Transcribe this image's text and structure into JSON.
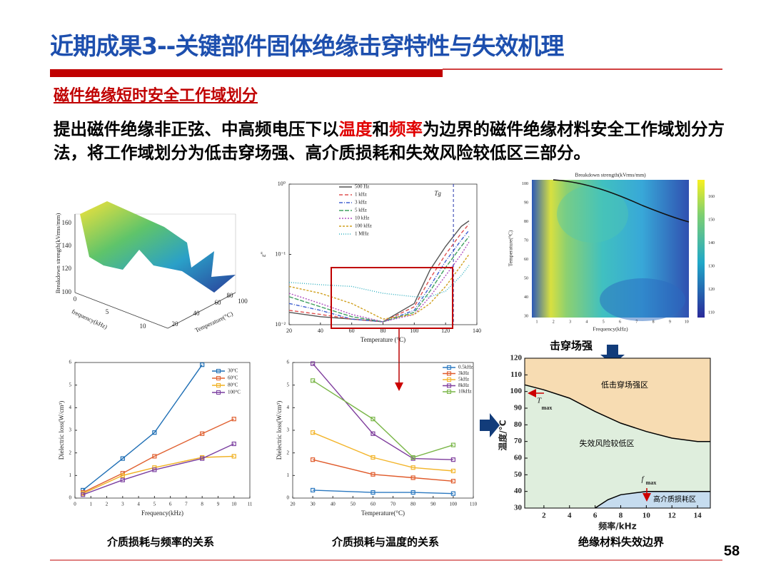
{
  "header": {
    "title": "近期成果3--关键部件固体绝缘击穿特性与失效机理",
    "subtitle": "磁件绝缘短时安全工作域划分",
    "page_number": "58"
  },
  "intro": {
    "parts": [
      "提出磁件绝缘非正弦、中高频电压下以",
      "温度",
      "和",
      "频率",
      "为边界的磁件绝缘材料安全工作域划分方法，将工作域划分为低击穿场强、高介质损耗和失效风险较低区三部分。"
    ]
  },
  "captions": [
    "介质损耗与频率的关系",
    "介质损耗与温度的关系",
    "绝缘材料失效边界"
  ],
  "annotation": "击穿场强",
  "surface3d": {
    "z_label": "Breakdown strength(kVrms/mm)",
    "x_label": "frequency(kHz)",
    "y_label": "Temperature(°C)",
    "z_ticks": [
      100,
      120,
      140,
      160
    ],
    "x_ticks": [
      0,
      5,
      10
    ],
    "y_ticks": [
      20,
      40,
      60,
      80,
      100
    ]
  },
  "eps": {
    "type": "line",
    "x_label": "Temperature (°C)",
    "y_label": "ε''",
    "tg_label": "Tg",
    "tg_value": 125,
    "x": [
      20,
      40,
      60,
      80,
      100,
      110,
      120,
      130,
      135
    ],
    "xlim": [
      20,
      140
    ],
    "xticks": [
      20,
      40,
      60,
      80,
      100,
      120,
      140
    ],
    "ylim": [
      0.01,
      1
    ],
    "log_y": true,
    "yticks": [
      {
        "value": 0.01,
        "label": "10⁻²"
      },
      {
        "value": 0.1,
        "label": "10⁻¹"
      },
      {
        "value": 1,
        "label": "10⁰"
      }
    ],
    "series": [
      {
        "name": "500 Hz",
        "color": "#555555",
        "values": [
          0.015,
          0.013,
          0.012,
          0.011,
          0.02,
          0.06,
          0.13,
          0.25,
          0.3
        ]
      },
      {
        "name": "1 kHz",
        "color": "#e05050",
        "values": [
          0.016,
          0.014,
          0.012,
          0.011,
          0.018,
          0.045,
          0.1,
          0.2,
          0.27
        ]
      },
      {
        "name": "3 kHz",
        "color": "#4060d0",
        "values": [
          0.02,
          0.016,
          0.012,
          0.011,
          0.016,
          0.035,
          0.08,
          0.16,
          0.22
        ]
      },
      {
        "name": "5 kHz",
        "color": "#40a060",
        "values": [
          0.025,
          0.018,
          0.013,
          0.011,
          0.015,
          0.03,
          0.065,
          0.13,
          0.18
        ]
      },
      {
        "name": "10 kHz",
        "color": "#b050c0",
        "values": [
          0.028,
          0.02,
          0.014,
          0.011,
          0.014,
          0.025,
          0.05,
          0.1,
          0.15
        ]
      },
      {
        "name": "100 kHz",
        "color": "#d0a020",
        "values": [
          0.035,
          0.028,
          0.02,
          0.012,
          0.014,
          0.02,
          0.035,
          0.07,
          0.1
        ]
      },
      {
        "name": "1 MHz",
        "color": "#30b0c0",
        "values": [
          0.04,
          0.037,
          0.035,
          0.028,
          0.025,
          0.025,
          0.03,
          0.05,
          0.07
        ]
      }
    ]
  },
  "heatmap": {
    "title": "Breakdown strength(kVrms/mm)",
    "x_label": "Frequency(kHz)",
    "y_label": "Temperature(°C)",
    "xticks": [
      1,
      2,
      3,
      4,
      5,
      6,
      7,
      8,
      9,
      10
    ],
    "yticks": [
      30,
      40,
      50,
      60,
      70,
      80,
      90,
      100
    ],
    "colorbar_ticks": [
      110,
      120,
      130,
      140,
      150,
      160
    ]
  },
  "freq_loss": {
    "type": "line",
    "x_label": "Frequency(kHz)",
    "y_label": "Dielectric loss(W/cm³)",
    "x": [
      0.5,
      3,
      5,
      8,
      10
    ],
    "xlim": [
      0,
      11
    ],
    "xticks": [
      0,
      1,
      2,
      3,
      4,
      5,
      6,
      7,
      8,
      9,
      10,
      11
    ],
    "ylim": [
      0,
      6
    ],
    "yticks": [
      0,
      1,
      2,
      3,
      4,
      5,
      6
    ],
    "series": [
      {
        "name": "30°C",
        "color": "#1f6fb5",
        "values": [
          0.35,
          1.75,
          2.9,
          5.9,
          null
        ]
      },
      {
        "name": "60°C",
        "color": "#e06030",
        "values": [
          0.25,
          1.1,
          1.85,
          2.85,
          3.5
        ]
      },
      {
        "name": "80°C",
        "color": "#f0b020",
        "values": [
          0.2,
          1.0,
          1.35,
          1.8,
          1.85
        ]
      },
      {
        "name": "100°C",
        "color": "#7b3fa0",
        "values": [
          0.15,
          0.8,
          1.25,
          1.75,
          2.4
        ]
      }
    ]
  },
  "temp_loss": {
    "type": "line",
    "x_label": "Temperature(°C)",
    "y_label": "Dielectric loss(W/cm³)",
    "x": [
      30,
      60,
      80,
      100
    ],
    "xlim": [
      20,
      110
    ],
    "xticks": [
      20,
      30,
      40,
      50,
      60,
      70,
      80,
      90,
      100,
      110
    ],
    "ylim": [
      0,
      6
    ],
    "yticks": [
      0,
      1,
      2,
      3,
      4,
      5,
      6
    ],
    "series": [
      {
        "name": "0.5kHz",
        "color": "#2a78c0",
        "values": [
          0.35,
          0.25,
          0.25,
          0.2
        ]
      },
      {
        "name": "3kHz",
        "color": "#e05a2a",
        "values": [
          1.7,
          1.05,
          0.9,
          0.75
        ]
      },
      {
        "name": "5kHz",
        "color": "#f3b52b",
        "values": [
          2.9,
          1.8,
          1.35,
          1.2
        ]
      },
      {
        "name": "8kHz",
        "color": "#7e3c9c",
        "values": [
          5.95,
          2.85,
          1.75,
          1.7
        ]
      },
      {
        "name": "10kHz",
        "color": "#7ab648",
        "values": [
          5.2,
          3.5,
          1.8,
          2.35
        ]
      }
    ]
  },
  "boundary": {
    "x_label": "频率/kHz",
    "y_label": "温度/°C",
    "xlim": [
      0.5,
      15
    ],
    "xticks": [
      2,
      4,
      6,
      8,
      10,
      12,
      14
    ],
    "ylim": [
      30,
      120
    ],
    "yticks": [
      30,
      40,
      50,
      60,
      70,
      80,
      90,
      100,
      110,
      120
    ],
    "upper": {
      "x": [
        0.5,
        2,
        4,
        6,
        8,
        10,
        12,
        14,
        15
      ],
      "y": [
        104,
        101,
        96,
        88,
        81,
        76,
        72,
        70,
        70
      ]
    },
    "lower": {
      "x": [
        6,
        7,
        8,
        10,
        12,
        14,
        15
      ],
      "y": [
        30,
        35,
        38,
        40,
        40,
        40,
        40
      ]
    },
    "regions": [
      "低击穿场强区",
      "失效风险较低区",
      "高介质损耗区"
    ],
    "tmax": "T",
    "tmax_sub": "max",
    "fmax": "f",
    "fmax_sub": "max"
  }
}
